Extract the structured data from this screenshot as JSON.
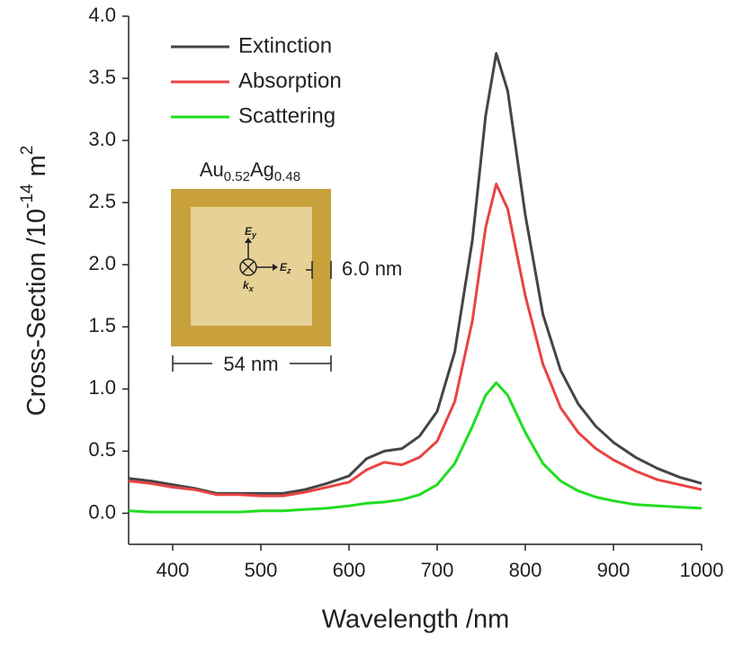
{
  "chart_data": {
    "type": "line",
    "xlabel": "Wavelength /nm",
    "ylabel": [
      "Cross-Section /10",
      "-14",
      " m",
      "2"
    ],
    "x": [
      350,
      375,
      400,
      425,
      450,
      475,
      500,
      525,
      550,
      575,
      600,
      620,
      640,
      660,
      680,
      700,
      720,
      740,
      755,
      767,
      780,
      800,
      820,
      840,
      860,
      880,
      900,
      925,
      950,
      975,
      1000
    ],
    "series": [
      {
        "name": "Extinction",
        "color": "#454545",
        "values": [
          0.28,
          0.26,
          0.23,
          0.2,
          0.16,
          0.16,
          0.16,
          0.16,
          0.19,
          0.24,
          0.3,
          0.44,
          0.5,
          0.52,
          0.62,
          0.82,
          1.3,
          2.2,
          3.2,
          3.7,
          3.4,
          2.4,
          1.6,
          1.15,
          0.88,
          0.7,
          0.57,
          0.45,
          0.36,
          0.29,
          0.24
        ]
      },
      {
        "name": "Absorption",
        "color": "#e84444",
        "values": [
          0.26,
          0.24,
          0.21,
          0.19,
          0.15,
          0.15,
          0.14,
          0.14,
          0.17,
          0.21,
          0.25,
          0.35,
          0.41,
          0.39,
          0.45,
          0.58,
          0.9,
          1.55,
          2.3,
          2.65,
          2.45,
          1.75,
          1.2,
          0.85,
          0.65,
          0.52,
          0.43,
          0.34,
          0.27,
          0.23,
          0.19
        ]
      },
      {
        "name": "Scattering",
        "color": "#22dd22",
        "values": [
          0.02,
          0.01,
          0.01,
          0.01,
          0.01,
          0.01,
          0.02,
          0.02,
          0.03,
          0.04,
          0.06,
          0.08,
          0.09,
          0.11,
          0.15,
          0.23,
          0.4,
          0.7,
          0.95,
          1.05,
          0.95,
          0.65,
          0.4,
          0.26,
          0.18,
          0.13,
          0.1,
          0.07,
          0.06,
          0.05,
          0.04
        ]
      }
    ],
    "xlim": [
      350,
      1000
    ],
    "xticks": [
      400,
      500,
      600,
      700,
      800,
      900,
      1000
    ],
    "ylim": [
      -0.25,
      4.0
    ],
    "yticks": [
      {
        "value": 0,
        "label": "0.0"
      },
      0.5,
      {
        "value": 1,
        "label": "1.0"
      },
      1.5,
      {
        "value": 2,
        "label": "2.0"
      },
      2.5,
      {
        "value": 3,
        "label": "3.0"
      },
      3.5,
      {
        "value": 4,
        "label": "4.0"
      }
    ],
    "legend": "top-left",
    "inset": {
      "material": [
        "Au",
        "0.52",
        "Ag",
        "0.48"
      ],
      "fields": [
        [
          "E",
          "y"
        ],
        [
          "E",
          "z"
        ],
        [
          "k",
          "x"
        ]
      ],
      "thickness": "6.0 nm",
      "size": "54 nm"
    }
  }
}
